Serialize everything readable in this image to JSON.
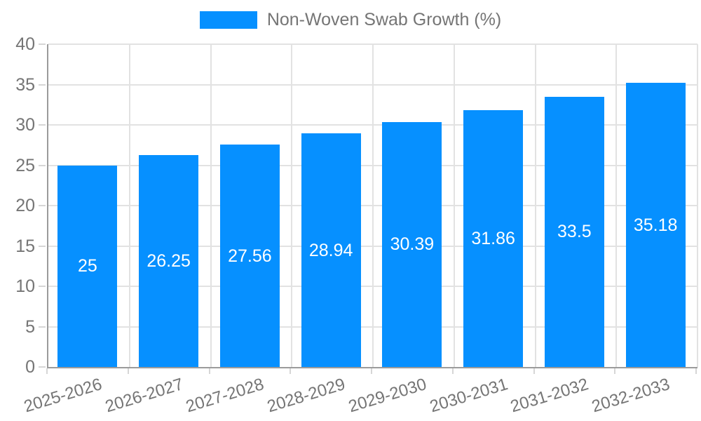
{
  "legend": {
    "label": "Non-Woven Swab Growth (%)"
  },
  "colors": {
    "bar": "#0690ff",
    "grid": "#e2e2e2",
    "axis": "#9b9b9b",
    "tick": "#d6d6d6",
    "text": "#757575",
    "value_label": "#ffffff",
    "background": "#ffffff"
  },
  "chart_data": {
    "type": "bar",
    "title": "",
    "categories": [
      "2025-2026",
      "2026-2027",
      "2027-2028",
      "2028-2029",
      "2029-2030",
      "2030-2031",
      "2031-2032",
      "2032-2033"
    ],
    "series": [
      {
        "name": "Non-Woven Swab Growth (%)",
        "values": [
          25,
          26.25,
          27.56,
          28.94,
          30.39,
          31.86,
          33.5,
          35.18
        ],
        "value_labels": [
          "25",
          "26.25",
          "27.56",
          "28.94",
          "30.39",
          "31.86",
          "33.5",
          "35.18"
        ],
        "color": "#0690ff"
      }
    ],
    "xlabel": "",
    "ylabel": "",
    "ylim": [
      0,
      40
    ],
    "yticks": [
      0,
      5,
      10,
      15,
      20,
      25,
      30,
      35,
      40
    ],
    "grid": true,
    "legend_position": "top",
    "value_label_position": "inside-center",
    "xtick_rotation_deg": -17
  }
}
